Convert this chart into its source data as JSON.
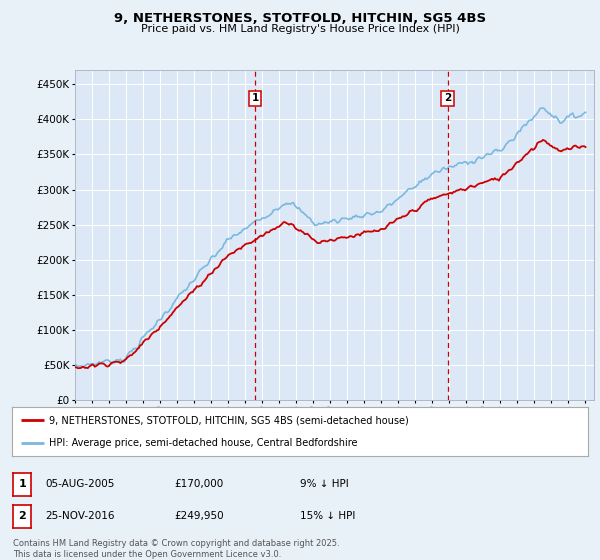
{
  "title": "9, NETHERSTONES, STOTFOLD, HITCHIN, SG5 4BS",
  "subtitle": "Price paid vs. HM Land Registry's House Price Index (HPI)",
  "ytick_values": [
    0,
    50000,
    100000,
    150000,
    200000,
    250000,
    300000,
    350000,
    400000,
    450000
  ],
  "ylim": [
    0,
    470000
  ],
  "xlim_start": 1995.0,
  "xlim_end": 2025.5,
  "hpi_color": "#7ab8e0",
  "price_color": "#cc0000",
  "sale1_x": 2005.59,
  "sale2_x": 2016.9,
  "marker1_label": "1",
  "marker2_label": "2",
  "legend_line1": "9, NETHERSTONES, STOTFOLD, HITCHIN, SG5 4BS (semi-detached house)",
  "legend_line2": "HPI: Average price, semi-detached house, Central Bedfordshire",
  "table_row1": [
    "1",
    "05-AUG-2005",
    "£170,000",
    "9% ↓ HPI"
  ],
  "table_row2": [
    "2",
    "25-NOV-2016",
    "£249,950",
    "15% ↓ HPI"
  ],
  "footnote": "Contains HM Land Registry data © Crown copyright and database right 2025.\nThis data is licensed under the Open Government Licence v3.0.",
  "background_color": "#e8f0f8",
  "plot_bg_color": "#dce8f5",
  "grid_color": "#ffffff",
  "vline_color": "#cc0000"
}
